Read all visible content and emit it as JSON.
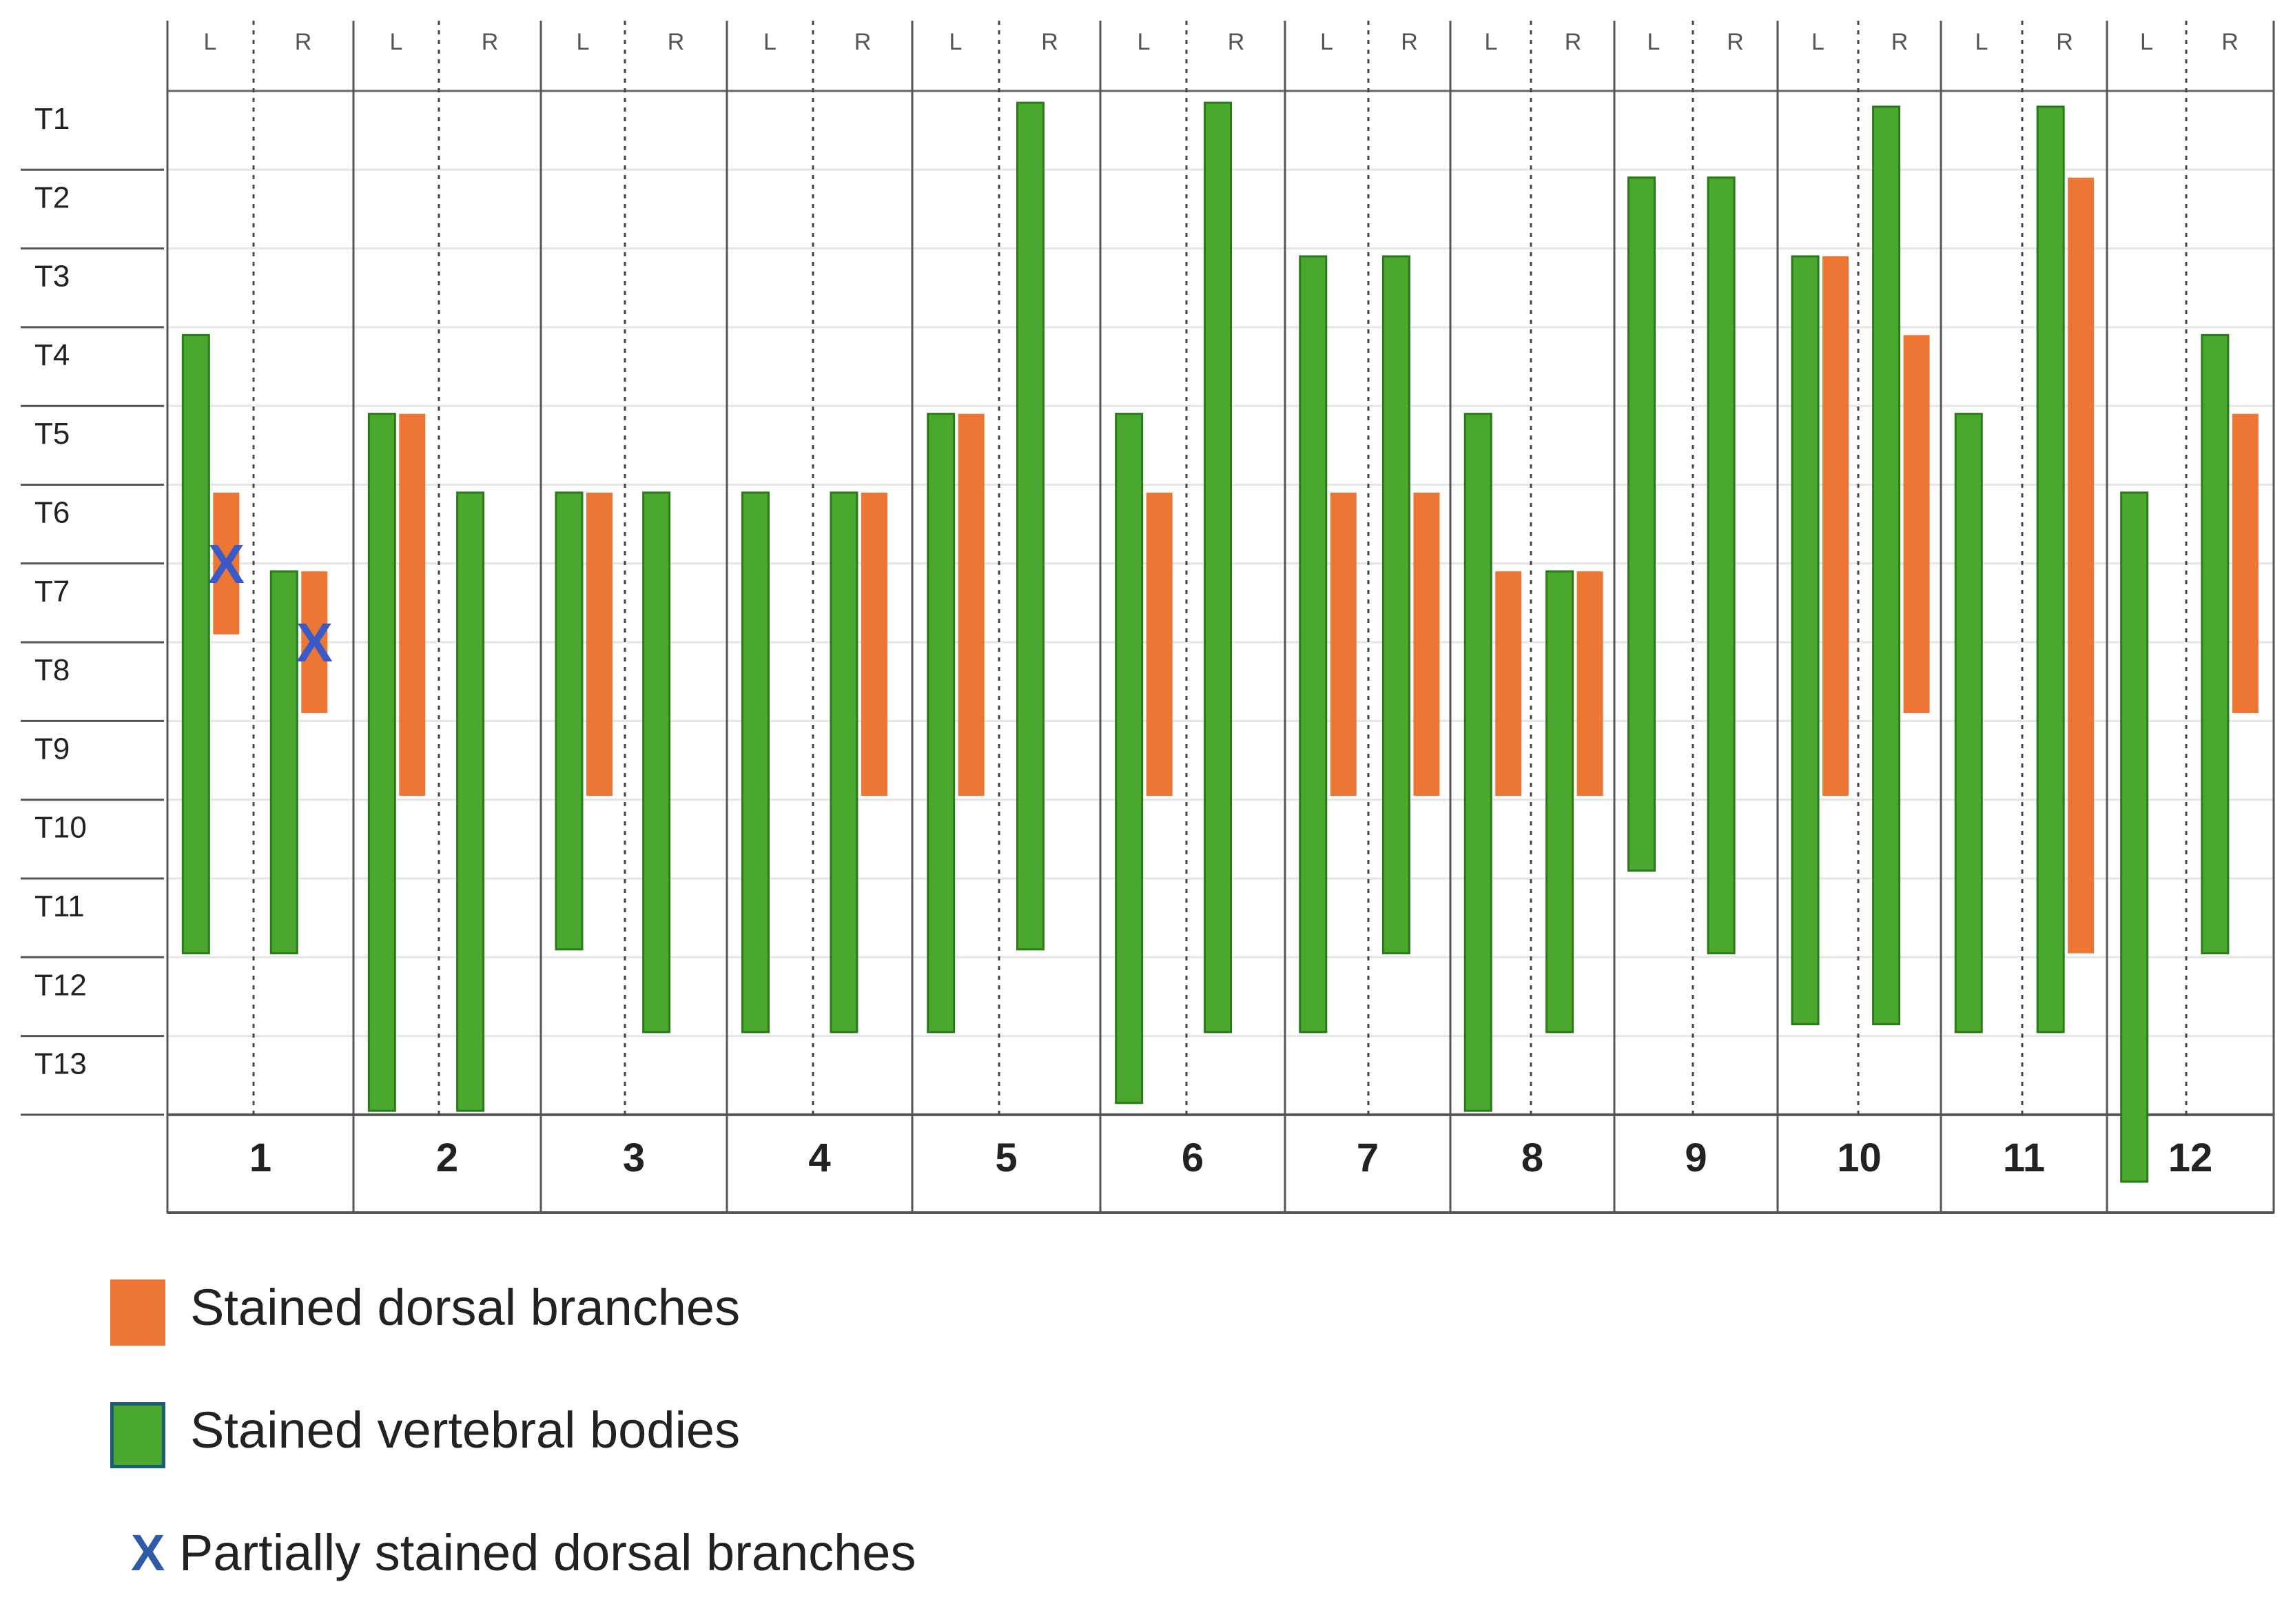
{
  "chart_data": {
    "type": "bar",
    "subtype": "floating-range",
    "rows": [
      "T1",
      "T2",
      "T3",
      "T4",
      "T5",
      "T6",
      "T7",
      "T8",
      "T9",
      "T10",
      "T11",
      "T12",
      "T13"
    ],
    "categories": [
      "1",
      "2",
      "3",
      "4",
      "5",
      "6",
      "7",
      "8",
      "9",
      "10",
      "11",
      "12"
    ],
    "sides": [
      "L",
      "R"
    ],
    "colors": {
      "dorsal": "#ed7634",
      "vertebral": "#4ba82e",
      "vertebral_border": "#2b7a1a",
      "partial_x": "#3a5bc7"
    },
    "series": [
      {
        "name": "Stained dorsal branches",
        "key": "dorsal"
      },
      {
        "name": "Stained vertebral bodies",
        "key": "vertebral"
      }
    ],
    "bars": [
      {
        "category": "1",
        "side": "L",
        "series": "vertebral",
        "from": 4.1,
        "to": 10.95
      },
      {
        "category": "1",
        "side": "L",
        "series": "dorsal",
        "from": 6.1,
        "to": 6.9,
        "partial": true
      },
      {
        "category": "1",
        "side": "R",
        "series": "vertebral",
        "from": 7.1,
        "to": 10.95
      },
      {
        "category": "1",
        "side": "R",
        "series": "dorsal",
        "from": 7.1,
        "to": 7.9,
        "partial": true
      },
      {
        "category": "2",
        "side": "L",
        "series": "vertebral",
        "from": 5.1,
        "to": 12.95
      },
      {
        "category": "2",
        "side": "L",
        "series": "dorsal",
        "from": 5.1,
        "to": 8.95
      },
      {
        "category": "2",
        "side": "R",
        "series": "vertebral",
        "from": 6.1,
        "to": 12.95
      },
      {
        "category": "3",
        "side": "L",
        "series": "vertebral",
        "from": 6.1,
        "to": 10.9
      },
      {
        "category": "3",
        "side": "L",
        "series": "dorsal",
        "from": 6.1,
        "to": 8.95
      },
      {
        "category": "3",
        "side": "R",
        "series": "vertebral",
        "from": 6.1,
        "to": 11.95
      },
      {
        "category": "4",
        "side": "L",
        "series": "vertebral",
        "from": 6.1,
        "to": 11.95
      },
      {
        "category": "4",
        "side": "R",
        "series": "vertebral",
        "from": 6.1,
        "to": 11.95
      },
      {
        "category": "4",
        "side": "R",
        "series": "dorsal",
        "from": 6.1,
        "to": 8.95
      },
      {
        "category": "5",
        "side": "L",
        "series": "vertebral",
        "from": 5.1,
        "to": 11.95
      },
      {
        "category": "5",
        "side": "L",
        "series": "dorsal",
        "from": 5.1,
        "to": 8.95
      },
      {
        "category": "5",
        "side": "R",
        "series": "vertebral",
        "from": 1.15,
        "to": 10.9
      },
      {
        "category": "6",
        "side": "L",
        "series": "vertebral",
        "from": 5.1,
        "to": 12.85
      },
      {
        "category": "6",
        "side": "L",
        "series": "dorsal",
        "from": 6.1,
        "to": 8.95
      },
      {
        "category": "6",
        "side": "R",
        "series": "vertebral",
        "from": 1.15,
        "to": 11.95
      },
      {
        "category": "7",
        "side": "L",
        "series": "vertebral",
        "from": 3.1,
        "to": 11.95
      },
      {
        "category": "7",
        "side": "L",
        "series": "dorsal",
        "from": 6.1,
        "to": 8.95
      },
      {
        "category": "7",
        "side": "R",
        "series": "vertebral",
        "from": 3.1,
        "to": 10.95
      },
      {
        "category": "7",
        "side": "R",
        "series": "dorsal",
        "from": 6.1,
        "to": 8.95
      },
      {
        "category": "8",
        "side": "L",
        "series": "vertebral",
        "from": 5.1,
        "to": 12.95
      },
      {
        "category": "8",
        "side": "L",
        "series": "dorsal",
        "from": 7.1,
        "to": 8.95
      },
      {
        "category": "8",
        "side": "R",
        "series": "vertebral",
        "from": 7.1,
        "to": 11.95
      },
      {
        "category": "8",
        "side": "R",
        "series": "dorsal",
        "from": 7.1,
        "to": 8.95
      },
      {
        "category": "9",
        "side": "L",
        "series": "vertebral",
        "from": 2.1,
        "to": 9.9
      },
      {
        "category": "9",
        "side": "R",
        "series": "vertebral",
        "from": 2.1,
        "to": 10.95
      },
      {
        "category": "10",
        "side": "L",
        "series": "vertebral",
        "from": 3.1,
        "to": 11.85
      },
      {
        "category": "10",
        "side": "L",
        "series": "dorsal",
        "from": 3.1,
        "to": 8.95
      },
      {
        "category": "10",
        "side": "R",
        "series": "vertebral",
        "from": 1.2,
        "to": 11.85
      },
      {
        "category": "10",
        "side": "R",
        "series": "dorsal",
        "from": 4.1,
        "to": 7.9
      },
      {
        "category": "11",
        "side": "L",
        "series": "vertebral",
        "from": 5.1,
        "to": 11.95
      },
      {
        "category": "11",
        "side": "R",
        "series": "vertebral",
        "from": 1.2,
        "to": 11.95
      },
      {
        "category": "11",
        "side": "R",
        "series": "dorsal",
        "from": 2.1,
        "to": 10.95
      },
      {
        "category": "12",
        "side": "L",
        "series": "vertebral",
        "from": 6.1,
        "to": 13.85
      },
      {
        "category": "12",
        "side": "R",
        "series": "vertebral",
        "from": 4.1,
        "to": 10.95
      },
      {
        "category": "12",
        "side": "R",
        "series": "dorsal",
        "from": 5.1,
        "to": 7.9
      }
    ],
    "title": "",
    "xlabel": "",
    "ylabel": "",
    "grid": true,
    "legend_position": "bottom-left"
  },
  "legend": {
    "dorsal_label": "Stained dorsal branches",
    "vertebral_label": "Stained vertebral bodies",
    "partial_mark": "X",
    "partial_label": "Partially stained dorsal branches"
  }
}
